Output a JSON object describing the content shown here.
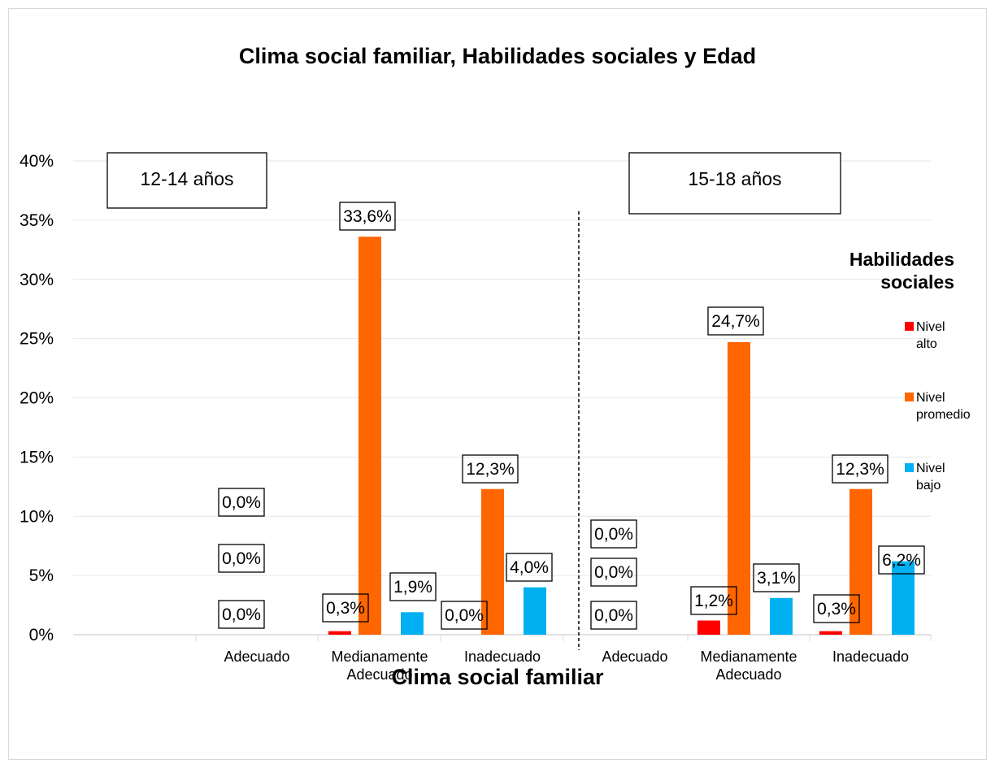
{
  "chart_data": {
    "type": "bar",
    "title": "Clima social familiar, Habilidades sociales y Edad",
    "xlabel": "Clima social familiar",
    "ylabel": "",
    "ylim": [
      0,
      40
    ],
    "y_ticks": [
      "0%",
      "5%",
      "10%",
      "15%",
      "20%",
      "25%",
      "30%",
      "35%",
      "40%"
    ],
    "y_tick_values": [
      0,
      5,
      10,
      15,
      20,
      25,
      30,
      35,
      40
    ],
    "grid": true,
    "legend_title": "Habilidades sociales",
    "legend_position": "right",
    "groups": [
      {
        "label": "12-14 años",
        "categories": [
          "Adecuado",
          "Medianamente Adecuado",
          "Inadecuado"
        ]
      },
      {
        "label": "15-18 años",
        "categories": [
          "Adecuado",
          "Medianamente Adecuado",
          "Inadecuado"
        ]
      }
    ],
    "series": [
      {
        "name": "Nivel alto",
        "color": "#ff0000",
        "values": [
          0.0,
          0.3,
          0.0,
          0.0,
          1.2,
          0.3
        ],
        "labels": [
          "0,0%",
          "0,3%",
          "0,0%",
          "0,0%",
          "1,2%",
          "0,3%"
        ]
      },
      {
        "name": "Nivel promedio",
        "color": "#ff6600",
        "values": [
          0.0,
          33.6,
          12.3,
          0.0,
          24.7,
          12.3
        ],
        "labels": [
          "0,0%",
          "33,6%",
          "12,3%",
          "0,0%",
          "24,7%",
          "12,3%"
        ]
      },
      {
        "name": "Nivel bajo",
        "color": "#00b0f0",
        "values": [
          0.0,
          1.9,
          4.0,
          0.0,
          3.1,
          6.2
        ],
        "labels": [
          "0,0%",
          "1,9%",
          "4,0%",
          "0,0%",
          "3,1%",
          "6,2%"
        ]
      }
    ]
  }
}
